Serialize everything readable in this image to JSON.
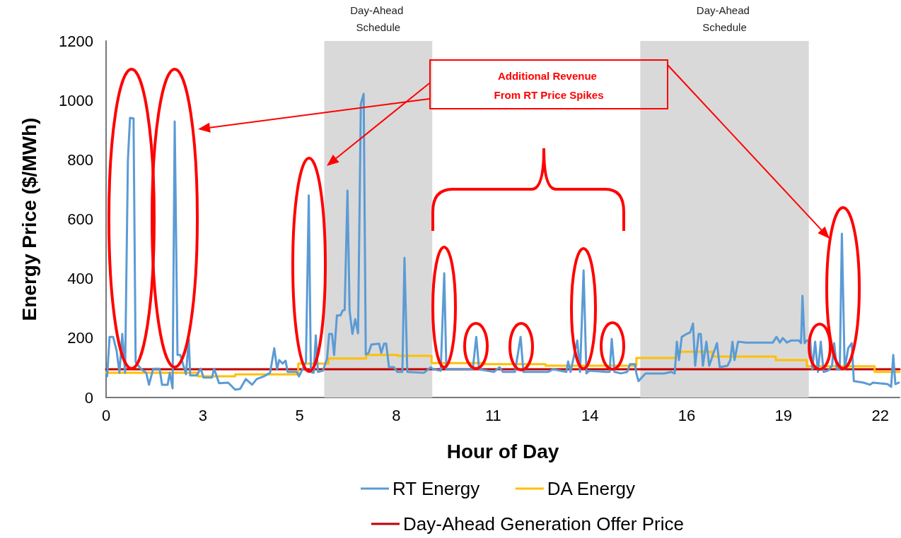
{
  "chart_data": {
    "type": "line",
    "xlabel": "Hour of Day",
    "ylabel": "Energy Price ($/MWh)",
    "xlim": [
      0,
      22.55
    ],
    "xticks": [
      0,
      {
        "value": 2.75,
        "label": "3"
      },
      {
        "value": 5.5,
        "label": "5"
      },
      {
        "value": 8.25,
        "label": "8"
      },
      11,
      {
        "value": 13.75,
        "label": "14"
      },
      {
        "value": 16.5,
        "label": "16"
      },
      {
        "value": 19.25,
        "label": "19"
      },
      22
    ],
    "ylim": [
      0,
      1200
    ],
    "yticks": [
      0,
      200,
      400,
      600,
      800,
      1000,
      1200
    ],
    "grid": false,
    "legend": "bottom",
    "marker": "none",
    "line_style": "solid",
    "series": [
      {
        "name": "RT Energy",
        "color": "#5b9bd5",
        "x": [
          0.03,
          0.1,
          0.2,
          0.3,
          0.38,
          0.46,
          0.54,
          0.62,
          0.68,
          0.78,
          0.84,
          1.0,
          1.14,
          1.22,
          1.34,
          1.52,
          1.59,
          1.75,
          1.81,
          1.89,
          1.95,
          2.03,
          2.11,
          2.27,
          2.35,
          2.39,
          2.57,
          2.69,
          2.77,
          3.01,
          3.07,
          3.21,
          3.47,
          3.67,
          3.81,
          3.97,
          4.15,
          4.28,
          4.48,
          4.66,
          4.78,
          4.86,
          4.92,
          5.02,
          5.1,
          5.16,
          5.42,
          5.48,
          5.68,
          5.76,
          5.82,
          5.9,
          5.96,
          6.02,
          6.16,
          6.28,
          6.34,
          6.42,
          6.48,
          6.56,
          6.66,
          6.72,
          6.78,
          6.86,
          6.92,
          7.0,
          7.08,
          7.16,
          7.24,
          7.32,
          7.38,
          7.46,
          7.54,
          7.76,
          7.82,
          7.9,
          7.96,
          8.04,
          8.18,
          8.28,
          8.42,
          8.48,
          8.56,
          9.03,
          9.23,
          9.29,
          9.51,
          9.61,
          9.67,
          10.24,
          10.42,
          10.52,
          10.6,
          11.02,
          11.18,
          11.28,
          11.62,
          11.78,
          11.86,
          12.56,
          12.7,
          13.08,
          13.13,
          13.2,
          13.39,
          13.47,
          13.57,
          13.65,
          13.73,
          14.21,
          14.31,
          14.37,
          14.45,
          14.63,
          14.81,
          14.89,
          15.03,
          15.07,
          15.13,
          15.33,
          15.86,
          16.06,
          16.16,
          16.22,
          16.28,
          16.36,
          16.5,
          16.6,
          16.68,
          16.74,
          16.84,
          16.9,
          16.96,
          17.06,
          17.14,
          17.36,
          17.44,
          17.66,
          17.74,
          17.8,
          17.86,
          17.96,
          18.18,
          18.95,
          19.05,
          19.15,
          19.23,
          19.35,
          19.47,
          19.69,
          19.75,
          19.79,
          19.85,
          19.91,
          20.01,
          20.07,
          20.15,
          20.23,
          20.31,
          20.39,
          20.51,
          20.63,
          20.69,
          20.77,
          20.85,
          20.91,
          20.99,
          21.09,
          21.19,
          21.25,
          21.53,
          21.71,
          21.79,
          22.21,
          22.31,
          22.37,
          22.43,
          22.53
        ],
        "values": [
          71,
          204,
          204,
          157,
          83,
          214,
          83,
          798,
          941,
          939,
          119,
          95,
          83,
          43,
          97,
          97,
          43,
          43,
          83,
          31,
          929,
          143,
          143,
          78,
          197,
          74,
          74,
          97,
          67,
          67,
          97,
          48,
          50,
          26,
          29,
          62,
          43,
          62,
          71,
          83,
          166,
          95,
          126,
          114,
          124,
          86,
          86,
          71,
          119,
          680,
          86,
          83,
          209,
          86,
          90,
          131,
          214,
          214,
          143,
          276,
          276,
          292,
          295,
          696,
          292,
          214,
          264,
          216,
          988,
          1022,
          145,
          150,
          178,
          181,
          150,
          181,
          181,
          102,
          102,
          86,
          86,
          470,
          86,
          83,
          102,
          95,
          90,
          418,
          95,
          95,
          95,
          204,
          95,
          86,
          102,
          86,
          86,
          204,
          86,
          86,
          95,
          86,
          121,
          86,
          192,
          86,
          428,
          81,
          90,
          86,
          86,
          197,
          86,
          81,
          86,
          112,
          112,
          81,
          55,
          81,
          81,
          86,
          81,
          188,
          126,
          204,
          214,
          219,
          249,
          107,
          214,
          214,
          107,
          188,
          107,
          183,
          102,
          107,
          126,
          188,
          126,
          188,
          185,
          185,
          204,
          185,
          200,
          185,
          192,
          192,
          183,
          342,
          183,
          192,
          192,
          95,
          188,
          86,
          188,
          86,
          90,
          107,
          183,
          95,
          95,
          551,
          95,
          166,
          183,
          55,
          50,
          43,
          50,
          45,
          36,
          143,
          45,
          50
        ]
      },
      {
        "name": "DA Energy",
        "color": "#ffc000",
        "type": "step",
        "x": [
          0,
          2.61,
          3.67,
          5.46,
          6.32,
          7.39,
          8.29,
          9.25,
          10.76,
          12.49,
          15.07,
          16.2,
          17.22,
          19.03,
          19.91,
          21.84,
          22.55
        ],
        "values": [
          83,
          71,
          78,
          114,
          131,
          143,
          140,
          116,
          112,
          107,
          133,
          154,
          138,
          126,
          105,
          86,
          86
        ]
      },
      {
        "name": "Day-Ahead Generation Offer Price",
        "color": "#c00000",
        "x": [
          0,
          22.55
        ],
        "values": [
          95,
          95
        ]
      }
    ],
    "bands": [
      {
        "axis": "x",
        "from": 6.2,
        "to": 9.27,
        "label": "Day-Ahead Schedule",
        "color": "#d9d9d9"
      },
      {
        "axis": "x",
        "from": 15.18,
        "to": 19.97,
        "label": "Day-Ahead Schedule",
        "color": "#d9d9d9"
      }
    ],
    "annotations": [
      "Additional Revenue From RT Price Spikes"
    ]
  }
}
